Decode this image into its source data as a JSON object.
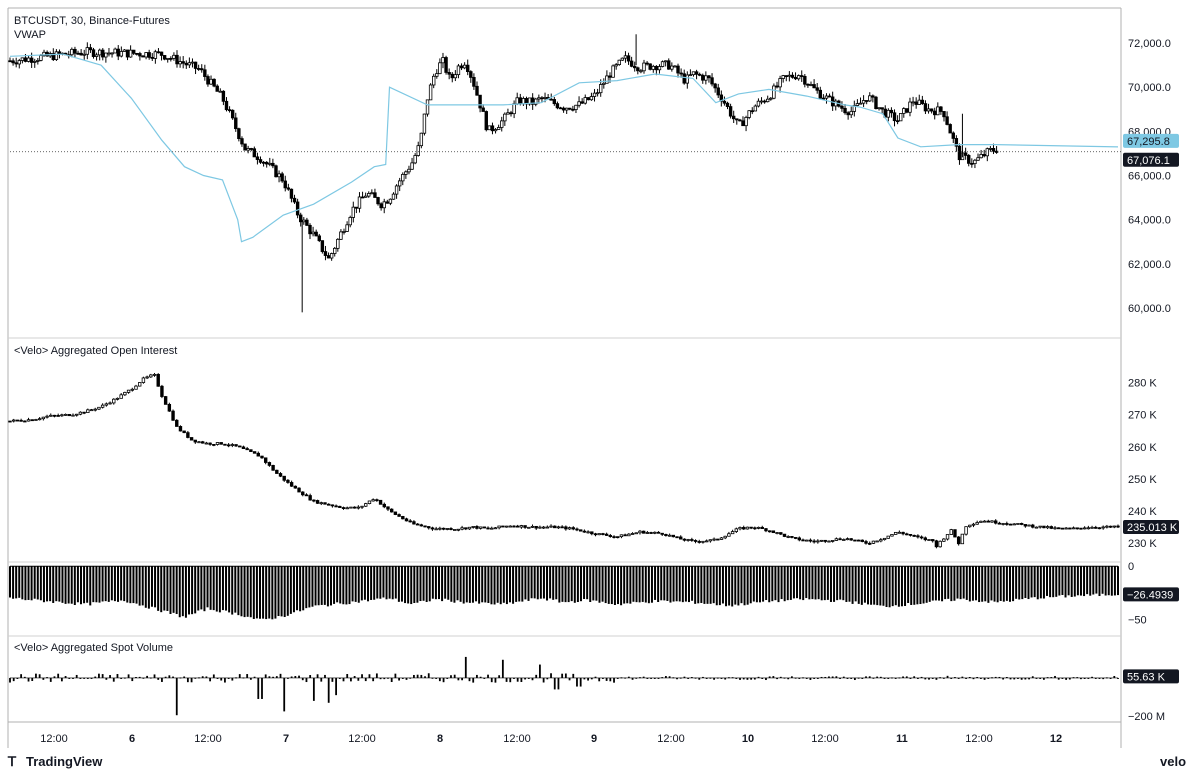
{
  "chart_data": [
    {
      "panel": "price",
      "type": "candlestick",
      "title": "BTCUSDT, 30, Binance-Futures",
      "indicator": "VWAP",
      "colors": {
        "candle": "#000000",
        "vwap": "#7ec8e3"
      },
      "yticks": [
        "72,000.0",
        "70,000.0",
        "68,000.0",
        "66,000.0",
        "64,000.0",
        "62,000.0",
        "60,000.0"
      ],
      "ytick_values": [
        72000,
        70000,
        68000,
        66000,
        64000,
        62000,
        60000
      ],
      "ylim": [
        59000,
        73500
      ],
      "last_price": 67076.1,
      "last_price_label": "67,076.1",
      "vwap_value": 67295.8,
      "vwap_label": "67,295.8",
      "close_path_x": [
        0,
        1,
        2,
        2.5,
        2.8,
        3.1,
        3.3,
        3.6,
        3.8,
        4.0,
        4.2,
        4.5,
        4.7,
        4.9,
        5.0,
        5.1,
        5.3,
        5.4,
        5.5,
        5.6,
        5.7,
        5.8,
        5.9,
        6.0,
        6.1,
        6.3,
        6.5,
        6.7,
        6.9,
        7.0,
        7.3,
        7.5,
        7.7,
        7.9,
        8.1,
        8.3,
        8.5,
        8.7,
        8.9,
        9.0,
        9.2,
        9.4,
        9.6,
        9.8,
        10.0,
        10.2,
        10.4,
        10.6,
        10.8,
        11.0,
        11.1,
        11.3,
        11.5,
        11.7,
        11.9,
        12.1,
        12.3,
        12.5,
        12.7,
        12.9,
        13.0
      ],
      "close_path_y": [
        71200,
        71600,
        71500,
        70800,
        69500,
        67200,
        66800,
        65800,
        64200,
        63300,
        62200,
        64400,
        65200,
        64700,
        65000,
        65600,
        66600,
        67400,
        69500,
        70700,
        71200,
        70300,
        70900,
        71200,
        70300,
        68000,
        68500,
        69400,
        69300,
        69500,
        69100,
        69200,
        69600,
        70600,
        71300,
        70900,
        71000,
        71000,
        70300,
        70600,
        70400,
        69400,
        68200,
        69100,
        69600,
        70400,
        70600,
        69900,
        69400,
        69000,
        68900,
        69600,
        68900,
        68500,
        69400,
        69000,
        68900,
        66900,
        66600,
        67100,
        67200
      ],
      "vwap_x": [
        0,
        0.7,
        1.2,
        1.6,
        2.0,
        2.3,
        2.55,
        2.8,
        3.0,
        3.05,
        3.2,
        3.6,
        4.0,
        4.5,
        4.8,
        4.95,
        5.0,
        5.5,
        6.0,
        6.5,
        7.0,
        7.5,
        8.0,
        8.5,
        9.0,
        9.3,
        9.6,
        10.0,
        10.5,
        11.0,
        11.2,
        11.5,
        11.7,
        12.0,
        12.5,
        13.0
      ],
      "vwap_y": [
        71400,
        71500,
        71000,
        69500,
        67600,
        66400,
        66000,
        65800,
        64000,
        63000,
        63200,
        64200,
        64700,
        65700,
        66400,
        66500,
        70000,
        69200,
        69200,
        69200,
        69300,
        70200,
        70300,
        70600,
        70400,
        69300,
        69700,
        69900,
        69600,
        69200,
        69100,
        68800,
        67700,
        67300,
        67400,
        67400
      ]
    },
    {
      "panel": "open_interest",
      "type": "candlestick",
      "title": "<Velo> Aggregated Open Interest",
      "yticks": [
        "280 K",
        "270 K",
        "260 K",
        "250 K",
        "240 K",
        "230 K"
      ],
      "ytick_values": [
        280000,
        270000,
        260000,
        250000,
        240000,
        230000
      ],
      "ylim": [
        226000,
        287000
      ],
      "last_value": 235013,
      "last_label": "235.013 K",
      "close_path_x": [
        0,
        0.3,
        0.5,
        0.8,
        1.0,
        1.2,
        1.4,
        1.6,
        1.75,
        1.9,
        2.0,
        2.2,
        2.4,
        2.6,
        2.8,
        3.0,
        3.1,
        3.3,
        3.5,
        3.7,
        4.0,
        4.2,
        4.4,
        4.6,
        4.8,
        5.0,
        5.3,
        5.6,
        5.9,
        6.1,
        6.3,
        6.6,
        6.9,
        7.2,
        7.4,
        7.7,
        8.0,
        8.3,
        8.6,
        8.8,
        9.0,
        9.3,
        9.6,
        9.8,
        10.0,
        10.3,
        10.6,
        10.8,
        11.0,
        11.3,
        11.5,
        11.7,
        12.0,
        12.2,
        12.5,
        12.8,
        13.0
      ],
      "close_path_y": [
        268000,
        268500,
        269500,
        270000,
        271000,
        272500,
        275000,
        278000,
        281000,
        282500,
        276000,
        266000,
        262000,
        261000,
        261000,
        260000,
        259000,
        257000,
        252000,
        248000,
        243000,
        242000,
        241000,
        241000,
        244000,
        240000,
        236000,
        234500,
        234500,
        235000,
        234500,
        235500,
        235000,
        235000,
        234500,
        233000,
        232000,
        233500,
        233000,
        231500,
        230500,
        231000,
        234500,
        235000,
        234000,
        231500,
        230500,
        231000,
        231500,
        230000,
        231500,
        233500,
        231500,
        230500,
        230000,
        229500,
        229000
      ],
      "tail_x": [
        12.2,
        12.4,
        12.6,
        12.8,
        13.0,
        13.2,
        13.4,
        13.6,
        13.8,
        14.0,
        14.2,
        14.4,
        14.6
      ],
      "tail_y": [
        229000,
        234000,
        235500,
        237000,
        236500,
        236000,
        235500,
        235000,
        234500,
        234500,
        235000,
        235000,
        235013
      ]
    },
    {
      "panel": "oscillator",
      "type": "bar",
      "yticks": [
        "0",
        "−50"
      ],
      "ytick_values": [
        0,
        -50
      ],
      "ylim": [
        -62,
        4
      ],
      "last_value": -26.4939,
      "last_label": "−26.4939",
      "profile_x": [
        0,
        0.5,
        1.0,
        1.5,
        2.0,
        2.3,
        2.6,
        3.0,
        3.3,
        3.6,
        4.0,
        4.5,
        5.0,
        5.3,
        5.6,
        6.0,
        6.5,
        7.0,
        7.3,
        7.6,
        8.0,
        8.5,
        9.0,
        9.5,
        10.0,
        10.5,
        11.0,
        11.5,
        12.0,
        12.5,
        13.0,
        13.5,
        14.0,
        14.6
      ],
      "profile_y": [
        -30,
        -33,
        -36,
        -32,
        -42,
        -48,
        -40,
        -45,
        -51,
        -47,
        -38,
        -34,
        -30,
        -36,
        -31,
        -34,
        -36,
        -30,
        -34,
        -32,
        -36,
        -33,
        -34,
        -37,
        -33,
        -31,
        -33,
        -38,
        -35,
        -31,
        -34,
        -30,
        -28,
        -26.4939
      ]
    },
    {
      "panel": "spot_volume",
      "type": "bar",
      "title": "<Velo> Aggregated Spot Volume",
      "yticks": [
        "−200 M"
      ],
      "ytick_values": [
        -200
      ],
      "ylim": [
        -220,
        120
      ],
      "last_value": 55.63,
      "last_label": "55.63 K",
      "spikes_x": [
        2.2,
        3.3,
        3.6,
        4.0,
        4.2,
        4.3,
        6.0,
        6.5,
        7.0,
        7.2,
        7.5
      ],
      "spikes_y": [
        -195,
        -110,
        -175,
        -120,
        -130,
        -90,
        110,
        95,
        70,
        -60,
        -45
      ]
    }
  ],
  "x_axis": {
    "labels": [
      "12:00",
      "6",
      "12:00",
      "7",
      "12:00",
      "8",
      "12:00",
      "9",
      "12:00",
      "10",
      "12:00",
      "11",
      "12:00",
      "12"
    ],
    "bold": [
      false,
      true,
      false,
      true,
      false,
      true,
      false,
      true,
      false,
      true,
      false,
      true,
      false,
      true
    ]
  },
  "branding": {
    "left": "TradingView",
    "right": "velo"
  }
}
